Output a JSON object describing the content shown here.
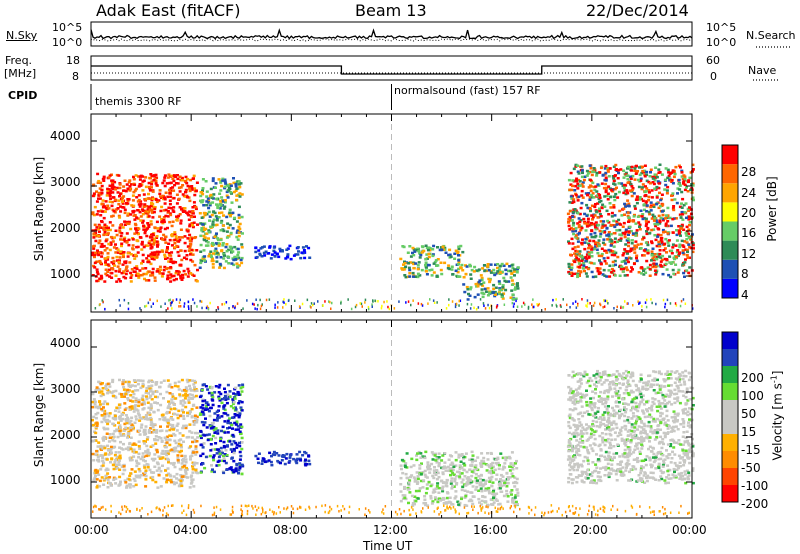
{
  "header": {
    "radar": "Adak East (fitACF)",
    "beam": "Beam 13",
    "date": "22/Dec/2014"
  },
  "top_panels": {
    "nsky_label": "N.Sky",
    "nsky_ticks": [
      "10^5",
      "10^0"
    ],
    "nsearch_label": "N.Search",
    "nsearch_ticks": [
      "10^5",
      "10^0"
    ],
    "freq_label_line1": "Freq.",
    "freq_label_line2": "[MHz]",
    "freq_ticks": [
      "18",
      "8"
    ],
    "nave_label": "Nave",
    "nave_ticks": [
      "60",
      "0"
    ],
    "cpid_label": "CPID",
    "cpid_segments": [
      "themis 3300 RF",
      "normalsound (fast) 157 RF"
    ]
  },
  "colors": {
    "background_gray": "#c8c8c4",
    "power_scale": [
      "#0000ff",
      "#1e50b4",
      "#2e8b57",
      "#66cc66",
      "#ffff00",
      "#ffa500",
      "#ff6600",
      "#ff0000"
    ],
    "velocity_scale": [
      "#0000cc",
      "#2244bb",
      "#22aa44",
      "#66dd33",
      "#c8c8c4",
      "#c8c8c4",
      "#ffb000",
      "#ff8c00",
      "#ff4400",
      "#ff0000"
    ]
  },
  "chart_data": [
    {
      "type": "heatmap",
      "name": "power",
      "ylabel": "Slant Range [km]",
      "yticks": [
        "1000",
        "2000",
        "3000",
        "4000"
      ],
      "ylim": [
        200,
        4600
      ],
      "xlim": [
        "00:00",
        "24:00"
      ],
      "colorbar": {
        "label": "Power [dB]",
        "ticks": [
          "4",
          "8",
          "12",
          "16",
          "20",
          "24",
          "28"
        ],
        "range": [
          0,
          32
        ]
      },
      "features": [
        {
          "time_start_h": 0.0,
          "time_end_h": 4.2,
          "range_km": [
            900,
            3300
          ],
          "dominant": "red-orange"
        },
        {
          "time_start_h": 4.3,
          "time_end_h": 6.0,
          "range_km": [
            1200,
            3200
          ],
          "dominant": "green-orange"
        },
        {
          "time_start_h": 6.5,
          "time_end_h": 8.7,
          "range_km": [
            1400,
            1700
          ],
          "dominant": "blue"
        },
        {
          "time_start_h": 12.3,
          "time_end_h": 14.8,
          "range_km": [
            1000,
            1700
          ],
          "dominant": "orange-green"
        },
        {
          "time_start_h": 14.8,
          "time_end_h": 17.0,
          "range_km": [
            500,
            1300
          ],
          "dominant": "green-orange"
        },
        {
          "time_start_h": 19.0,
          "time_end_h": 24.0,
          "range_km": [
            1000,
            3500
          ],
          "dominant": "red-orange-green"
        }
      ]
    },
    {
      "type": "heatmap",
      "name": "velocity",
      "ylabel": "Slant Range [km]",
      "yticks": [
        "1000",
        "2000",
        "3000",
        "4000"
      ],
      "ylim": [
        200,
        4600
      ],
      "xlim": [
        "00:00",
        "24:00"
      ],
      "xticks": [
        "00:00",
        "04:00",
        "08:00",
        "12:00",
        "16:00",
        "20:00",
        "00:00"
      ],
      "xlabel": "Time UT",
      "colorbar": {
        "label": "Velocity [m s",
        "label_sup": "-1",
        "label_end": "]",
        "ticks": [
          "200",
          "100",
          "50",
          "15",
          "-15",
          "-50",
          "-100",
          "-200"
        ],
        "range": [
          -250,
          250
        ]
      },
      "features": [
        {
          "time_start_h": 0.0,
          "time_end_h": 4.2,
          "range_km": [
            900,
            3300
          ],
          "dominant": "gray-orange"
        },
        {
          "time_start_h": 4.3,
          "time_end_h": 6.0,
          "range_km": [
            1200,
            3200
          ],
          "dominant": "blue-green"
        },
        {
          "time_start_h": 6.5,
          "time_end_h": 8.7,
          "range_km": [
            1400,
            1700
          ],
          "dominant": "blue"
        },
        {
          "time_start_h": 12.3,
          "time_end_h": 17.0,
          "range_km": [
            500,
            1700
          ],
          "dominant": "gray-green"
        },
        {
          "time_start_h": 19.0,
          "time_end_h": 24.0,
          "range_km": [
            1000,
            3500
          ],
          "dominant": "gray"
        }
      ]
    }
  ]
}
